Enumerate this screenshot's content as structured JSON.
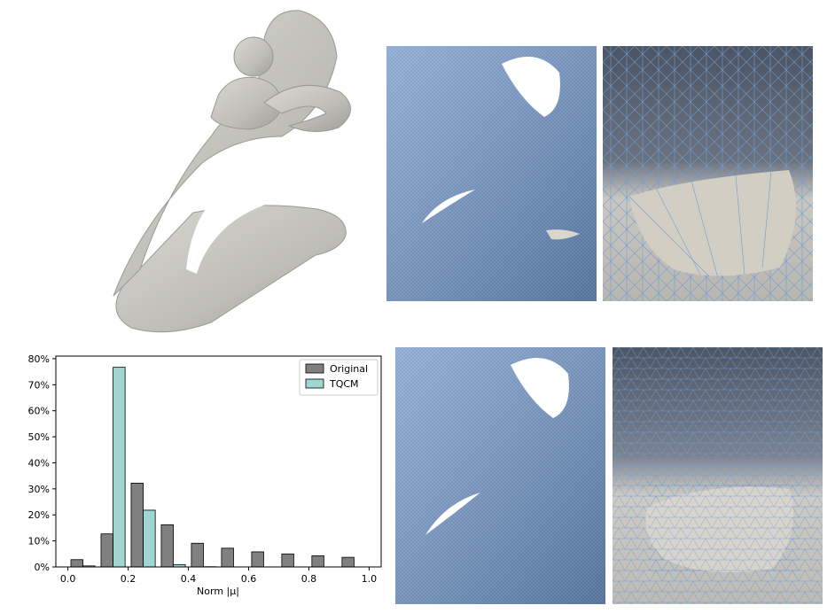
{
  "figure": {
    "panels": [
      "statue-render",
      "mesh-original-wide",
      "mesh-original-zoom",
      "histogram",
      "mesh-tqcm-wide",
      "mesh-tqcm-zoom"
    ]
  },
  "colors": {
    "original": "#808080",
    "tqcm": "#9fd6d2",
    "mesh_edge": "#5b8fd0",
    "surface": "#c8c6c0"
  },
  "chart_data": {
    "type": "bar",
    "xlabel": "Norm |μ|",
    "ylabel": "",
    "xlim": [
      -0.04,
      1.04
    ],
    "ylim": [
      0,
      81
    ],
    "xticks": [
      "0.0",
      "0.2",
      "0.4",
      "0.6",
      "0.8",
      "1.0"
    ],
    "xtick_values": [
      0.0,
      0.2,
      0.4,
      0.6,
      0.8,
      1.0
    ],
    "yticks": [
      "0%",
      "10%",
      "20%",
      "30%",
      "40%",
      "50%",
      "60%",
      "70%",
      "80%"
    ],
    "ytick_values": [
      0,
      10,
      20,
      30,
      40,
      50,
      60,
      70,
      80
    ],
    "legend_position": "top-right",
    "bin_centers": [
      0.05,
      0.15,
      0.25,
      0.35,
      0.45,
      0.55,
      0.65,
      0.75,
      0.85,
      0.95
    ],
    "series": [
      {
        "name": "Original",
        "values": [
          2.8,
          12.7,
          32.2,
          16.2,
          9.1,
          7.2,
          5.8,
          5.0,
          4.3,
          3.7
        ]
      },
      {
        "name": "TQCM",
        "values": [
          0.4,
          76.7,
          21.8,
          0.9,
          0.1,
          0.0,
          0.0,
          0.0,
          0.0,
          0.0
        ]
      }
    ]
  }
}
